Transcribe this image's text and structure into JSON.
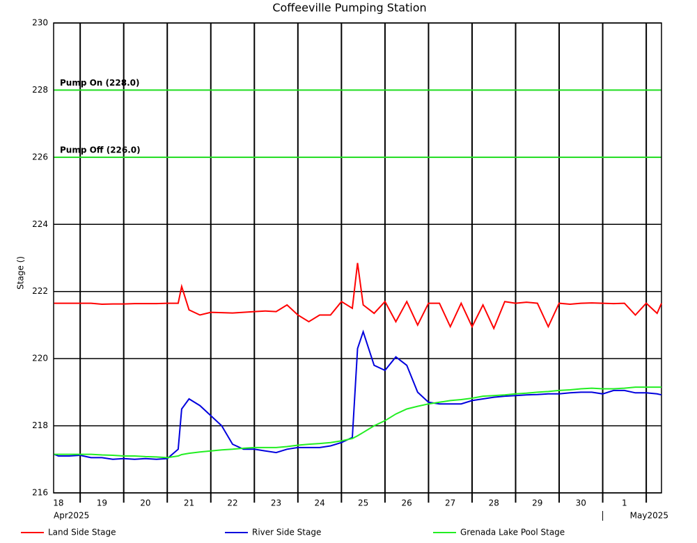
{
  "chart_data": {
    "type": "line",
    "title": "Coffeeville Pumping Station",
    "y_label": "Stage ()",
    "ylim": [
      216,
      230
    ],
    "yticks": [
      216,
      218,
      220,
      222,
      224,
      226,
      228,
      230
    ],
    "grid": true,
    "xlim": [
      0.39,
      14.35
    ],
    "xgrid": [
      1,
      2,
      3,
      4,
      5,
      6,
      7,
      8,
      9,
      10,
      11,
      12,
      13,
      14
    ],
    "xticks": [
      {
        "value": 0.5,
        "label": "18"
      },
      {
        "value": 1.5,
        "label": "19"
      },
      {
        "value": 2.5,
        "label": "20"
      },
      {
        "value": 3.5,
        "label": "21"
      },
      {
        "value": 4.5,
        "label": "22"
      },
      {
        "value": 5.5,
        "label": "23"
      },
      {
        "value": 6.5,
        "label": "24"
      },
      {
        "value": 7.5,
        "label": "25"
      },
      {
        "value": 8.5,
        "label": "26"
      },
      {
        "value": 9.5,
        "label": "27"
      },
      {
        "value": 10.5,
        "label": "28"
      },
      {
        "value": 11.5,
        "label": "29"
      },
      {
        "value": 12.5,
        "label": "30"
      },
      {
        "value": 13.5,
        "label": "1"
      }
    ],
    "period_labels": [
      {
        "value": 0.39,
        "label": "Apr2025"
      },
      {
        "value": 13,
        "label": "May2025"
      }
    ],
    "reference_lines": [
      {
        "value": 228,
        "label": "Pump On (228.0)",
        "color": "#22e022"
      },
      {
        "value": 226,
        "label": "Pump Off (226.0)",
        "color": "#22e022"
      }
    ],
    "x": [
      0.4,
      0.5,
      0.75,
      1,
      1.25,
      1.5,
      1.75,
      2,
      2.25,
      2.5,
      2.75,
      3,
      3.25,
      3.33,
      3.5,
      3.75,
      4,
      4.25,
      4.5,
      4.75,
      5,
      5.25,
      5.5,
      5.75,
      6,
      6.25,
      6.5,
      6.75,
      7,
      7.25,
      7.37,
      7.5,
      7.75,
      8,
      8.25,
      8.5,
      8.75,
      9,
      9.25,
      9.5,
      9.75,
      10,
      10.25,
      10.5,
      10.75,
      11,
      11.25,
      11.5,
      11.75,
      12,
      12.25,
      12.5,
      12.75,
      13,
      13.25,
      13.5,
      13.75,
      14,
      14.25,
      14.35
    ],
    "series": [
      {
        "name": "Land Side Stage",
        "color": "#ff0000",
        "values": [
          221.65,
          221.65,
          221.65,
          221.65,
          221.65,
          221.62,
          221.63,
          221.63,
          221.64,
          221.64,
          221.64,
          221.65,
          221.65,
          222.15,
          221.45,
          221.3,
          221.38,
          221.37,
          221.36,
          221.38,
          221.4,
          221.42,
          221.4,
          221.6,
          221.3,
          221.1,
          221.3,
          221.3,
          221.7,
          221.5,
          222.85,
          221.6,
          221.35,
          221.7,
          221.1,
          221.7,
          221.0,
          221.65,
          221.65,
          220.95,
          221.65,
          220.95,
          221.6,
          220.9,
          221.7,
          221.65,
          221.68,
          221.65,
          220.95,
          221.65,
          221.62,
          221.65,
          221.66,
          221.65,
          221.64,
          221.65,
          221.3,
          221.65,
          221.35,
          221.65
        ]
      },
      {
        "name": "River Side Stage",
        "color": "#0000dd",
        "values": [
          217.15,
          217.1,
          217.1,
          217.12,
          217.05,
          217.05,
          217.0,
          217.02,
          217.0,
          217.02,
          217.0,
          217.02,
          217.3,
          218.5,
          218.8,
          218.6,
          218.3,
          218.0,
          217.45,
          217.3,
          217.3,
          217.25,
          217.2,
          217.3,
          217.35,
          217.35,
          217.35,
          217.4,
          217.5,
          217.65,
          220.3,
          220.8,
          219.8,
          219.65,
          220.05,
          219.8,
          219.0,
          218.7,
          218.65,
          218.65,
          218.65,
          218.75,
          218.8,
          218.85,
          218.88,
          218.9,
          218.92,
          218.93,
          218.95,
          218.95,
          218.98,
          219.0,
          219.0,
          218.95,
          219.05,
          219.05,
          218.98,
          218.98,
          218.95,
          218.92
        ]
      },
      {
        "name": "Grenada Lake Pool Stage",
        "color": "#22ee22",
        "values": [
          217.15,
          217.15,
          217.15,
          217.15,
          217.15,
          217.13,
          217.12,
          217.1,
          217.1,
          217.08,
          217.07,
          217.05,
          217.1,
          217.14,
          217.18,
          217.22,
          217.25,
          217.28,
          217.3,
          217.33,
          217.35,
          217.35,
          217.35,
          217.38,
          217.42,
          217.45,
          217.47,
          217.5,
          217.55,
          217.62,
          217.7,
          217.8,
          218.0,
          218.15,
          218.35,
          218.5,
          218.58,
          218.65,
          218.7,
          218.75,
          218.78,
          218.82,
          218.88,
          218.9,
          218.92,
          218.95,
          218.97,
          219.0,
          219.02,
          219.05,
          219.07,
          219.1,
          219.12,
          219.1,
          219.1,
          219.12,
          219.15,
          219.15,
          219.15,
          219.15
        ]
      }
    ]
  }
}
